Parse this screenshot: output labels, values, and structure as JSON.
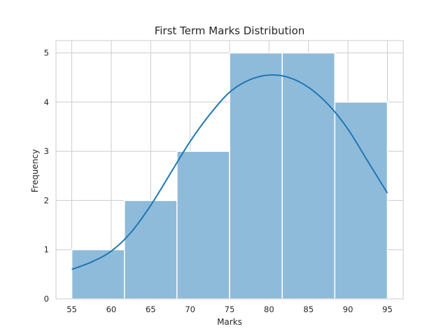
{
  "chart_data": {
    "type": "bar",
    "subtype": "histogram_with_kde",
    "title": "First Term Marks Distribution",
    "xlabel": "Marks",
    "ylabel": "Frequency",
    "xlim": [
      53,
      97
    ],
    "ylim": [
      0,
      5.25
    ],
    "xticks": [
      55,
      60,
      65,
      70,
      75,
      80,
      85,
      90,
      95
    ],
    "yticks": [
      0,
      1,
      2,
      3,
      4,
      5
    ],
    "grid": true,
    "bins": [
      {
        "x0": 55.0,
        "x1": 61.67,
        "count": 1
      },
      {
        "x0": 61.67,
        "x1": 68.33,
        "count": 2
      },
      {
        "x0": 68.33,
        "x1": 75.0,
        "count": 3
      },
      {
        "x0": 75.0,
        "x1": 81.67,
        "count": 5
      },
      {
        "x0": 81.67,
        "x1": 88.33,
        "count": 5
      },
      {
        "x0": 88.33,
        "x1": 95.0,
        "count": 4
      }
    ],
    "kde": {
      "x": [
        55,
        57.5,
        60,
        62.5,
        65,
        67.5,
        70,
        72.5,
        75,
        77.5,
        80,
        82.5,
        85,
        87.5,
        90,
        92.5,
        95
      ],
      "y": [
        0.6,
        0.75,
        0.97,
        1.35,
        1.9,
        2.55,
        3.2,
        3.75,
        4.2,
        4.45,
        4.55,
        4.5,
        4.3,
        3.95,
        3.45,
        2.8,
        2.15
      ]
    },
    "colors": {
      "bar_fill": "#8fbbda",
      "bar_edge": "#ffffff",
      "kde_line": "#1f77b4",
      "grid": "#cccccc",
      "text": "#262626"
    }
  }
}
